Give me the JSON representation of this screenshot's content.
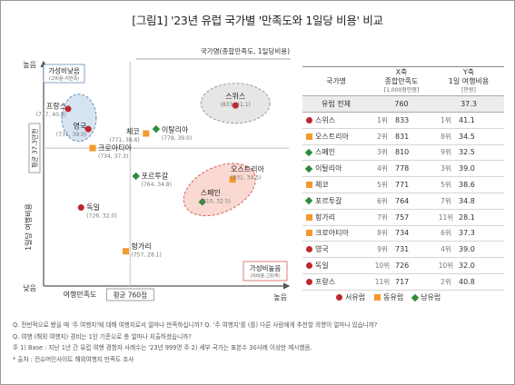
{
  "title": "[그림1] '23년 유럽 국가별 '만족도와 1일당 비용' 비교",
  "chart_data": {
    "type": "scatter",
    "xlabel": "여행만족도",
    "ylabel": "1일당 여행비용",
    "x_low": "낮음",
    "x_high": "높음",
    "y_high": "높음",
    "y_low": "낮음",
    "xlim": [
      700,
      870
    ],
    "ylim": [
      25,
      45
    ],
    "x_avg_label": "평균 760점",
    "y_avg_label": "평균 37.3만원",
    "x_avg": 760,
    "y_avg": 37.3,
    "quadrant_header": "국가명(종합만족도, 1일당비용)",
    "group_low_cost": {
      "title": "가성비낮음",
      "sub": "(고비용-저만족)"
    },
    "group_high_value": {
      "title": "가성비높음",
      "sub": "(저비용-고만족)"
    },
    "points": [
      {
        "name": "스위스",
        "x": 833,
        "y": 41.1,
        "label": "(833, 41.1)",
        "region": "서유럽"
      },
      {
        "name": "오스트리아",
        "x": 831,
        "y": 34.5,
        "label": "(831, 34.5)",
        "region": "동유럽"
      },
      {
        "name": "스페인",
        "x": 810,
        "y": 32.5,
        "label": "(810, 32.5)",
        "region": "남유럽"
      },
      {
        "name": "이탈리아",
        "x": 778,
        "y": 39.0,
        "label": "(778, 39.0)",
        "region": "남유럽"
      },
      {
        "name": "체코",
        "x": 771,
        "y": 38.6,
        "label": "(771, 38.6)",
        "region": "동유럽"
      },
      {
        "name": "포르투갈",
        "x": 764,
        "y": 34.8,
        "label": "(764, 34.8)",
        "region": "남유럽"
      },
      {
        "name": "헝가리",
        "x": 757,
        "y": 28.1,
        "label": "(757, 28.1)",
        "region": "동유럽"
      },
      {
        "name": "크로아티아",
        "x": 734,
        "y": 37.3,
        "label": "(734, 37.3)",
        "region": "동유럽"
      },
      {
        "name": "영국",
        "x": 731,
        "y": 39.0,
        "label": "(731, 39.0)",
        "region": "서유럽"
      },
      {
        "name": "독일",
        "x": 726,
        "y": 32.0,
        "label": "(726, 32.0)",
        "region": "서유럽"
      },
      {
        "name": "프랑스",
        "x": 717,
        "y": 40.8,
        "label": "(717, 40.8)",
        "region": "서유럽"
      }
    ],
    "colors": {
      "서유럽": "#c0272d",
      "동유럽": "#f39a2b",
      "남유럽": "#2e8b3a"
    }
  },
  "table": {
    "headers": [
      "국가명",
      "X축\n종합만족도\n[1,000점만점]",
      "Y축\n1일 여행비용\n[만원]"
    ],
    "total": {
      "name": "유럽 전체",
      "x": "760",
      "y": "37.3"
    },
    "rows": [
      {
        "name": "스위스",
        "region": "서유럽",
        "xr": "1위",
        "x": "833",
        "yr": "1위",
        "y": "41.1"
      },
      {
        "name": "오스트리아",
        "region": "동유럽",
        "xr": "2위",
        "x": "831",
        "yr": "8위",
        "y": "34.5"
      },
      {
        "name": "스페인",
        "region": "남유럽",
        "xr": "3위",
        "x": "810",
        "yr": "9위",
        "y": "32.5"
      },
      {
        "name": "이탈리아",
        "region": "남유럽",
        "xr": "4위",
        "x": "778",
        "yr": "3위",
        "y": "39.0"
      },
      {
        "name": "체코",
        "region": "동유럽",
        "xr": "5위",
        "x": "771",
        "yr": "5위",
        "y": "38.6"
      },
      {
        "name": "포르투갈",
        "region": "남유럽",
        "xr": "6위",
        "x": "764",
        "yr": "7위",
        "y": "34.8"
      },
      {
        "name": "헝가리",
        "region": "동유럽",
        "xr": "7위",
        "x": "757",
        "yr": "11위",
        "y": "28.1"
      },
      {
        "name": "크로아티아",
        "region": "동유럽",
        "xr": "8위",
        "x": "734",
        "yr": "6위",
        "y": "37.3"
      },
      {
        "name": "영국",
        "region": "서유럽",
        "xr": "9위",
        "x": "731",
        "yr": "4위",
        "y": "39.0"
      },
      {
        "name": "독일",
        "region": "서유럽",
        "xr": "10위",
        "x": "726",
        "yr": "10위",
        "y": "32.0"
      },
      {
        "name": "프랑스",
        "region": "서유럽",
        "xr": "11위",
        "x": "717",
        "yr": "2위",
        "y": "40.8"
      }
    ]
  },
  "legend": [
    {
      "label": "서유럽",
      "shape": "circle"
    },
    {
      "label": "동유럽",
      "shape": "square"
    },
    {
      "label": "남유럽",
      "shape": "diamond"
    }
  ],
  "notes": [
    "Q. 전반적으로 봤을 때 '주 여행지'에 대해 여행지로서 얼마나 만족하십니까? Q. '주 여행지'를 (를) 다른 사람에게 추천할 의향이 얼마나 있습니까?",
    "Q. 여행 (해외 여행지) 경비는 1인 기준으로 총 얼마나 지출하셨습니까?",
    "주 1) Base : 지난 1년 간 유럽 여행 경험자 사례수는 '23년 999명 주 2) 세부 국가는 표본수 30사례 이상만 제시했음.",
    "* 출처 : 컨슈머인사이트 해외여행지 만족도 조사"
  ]
}
